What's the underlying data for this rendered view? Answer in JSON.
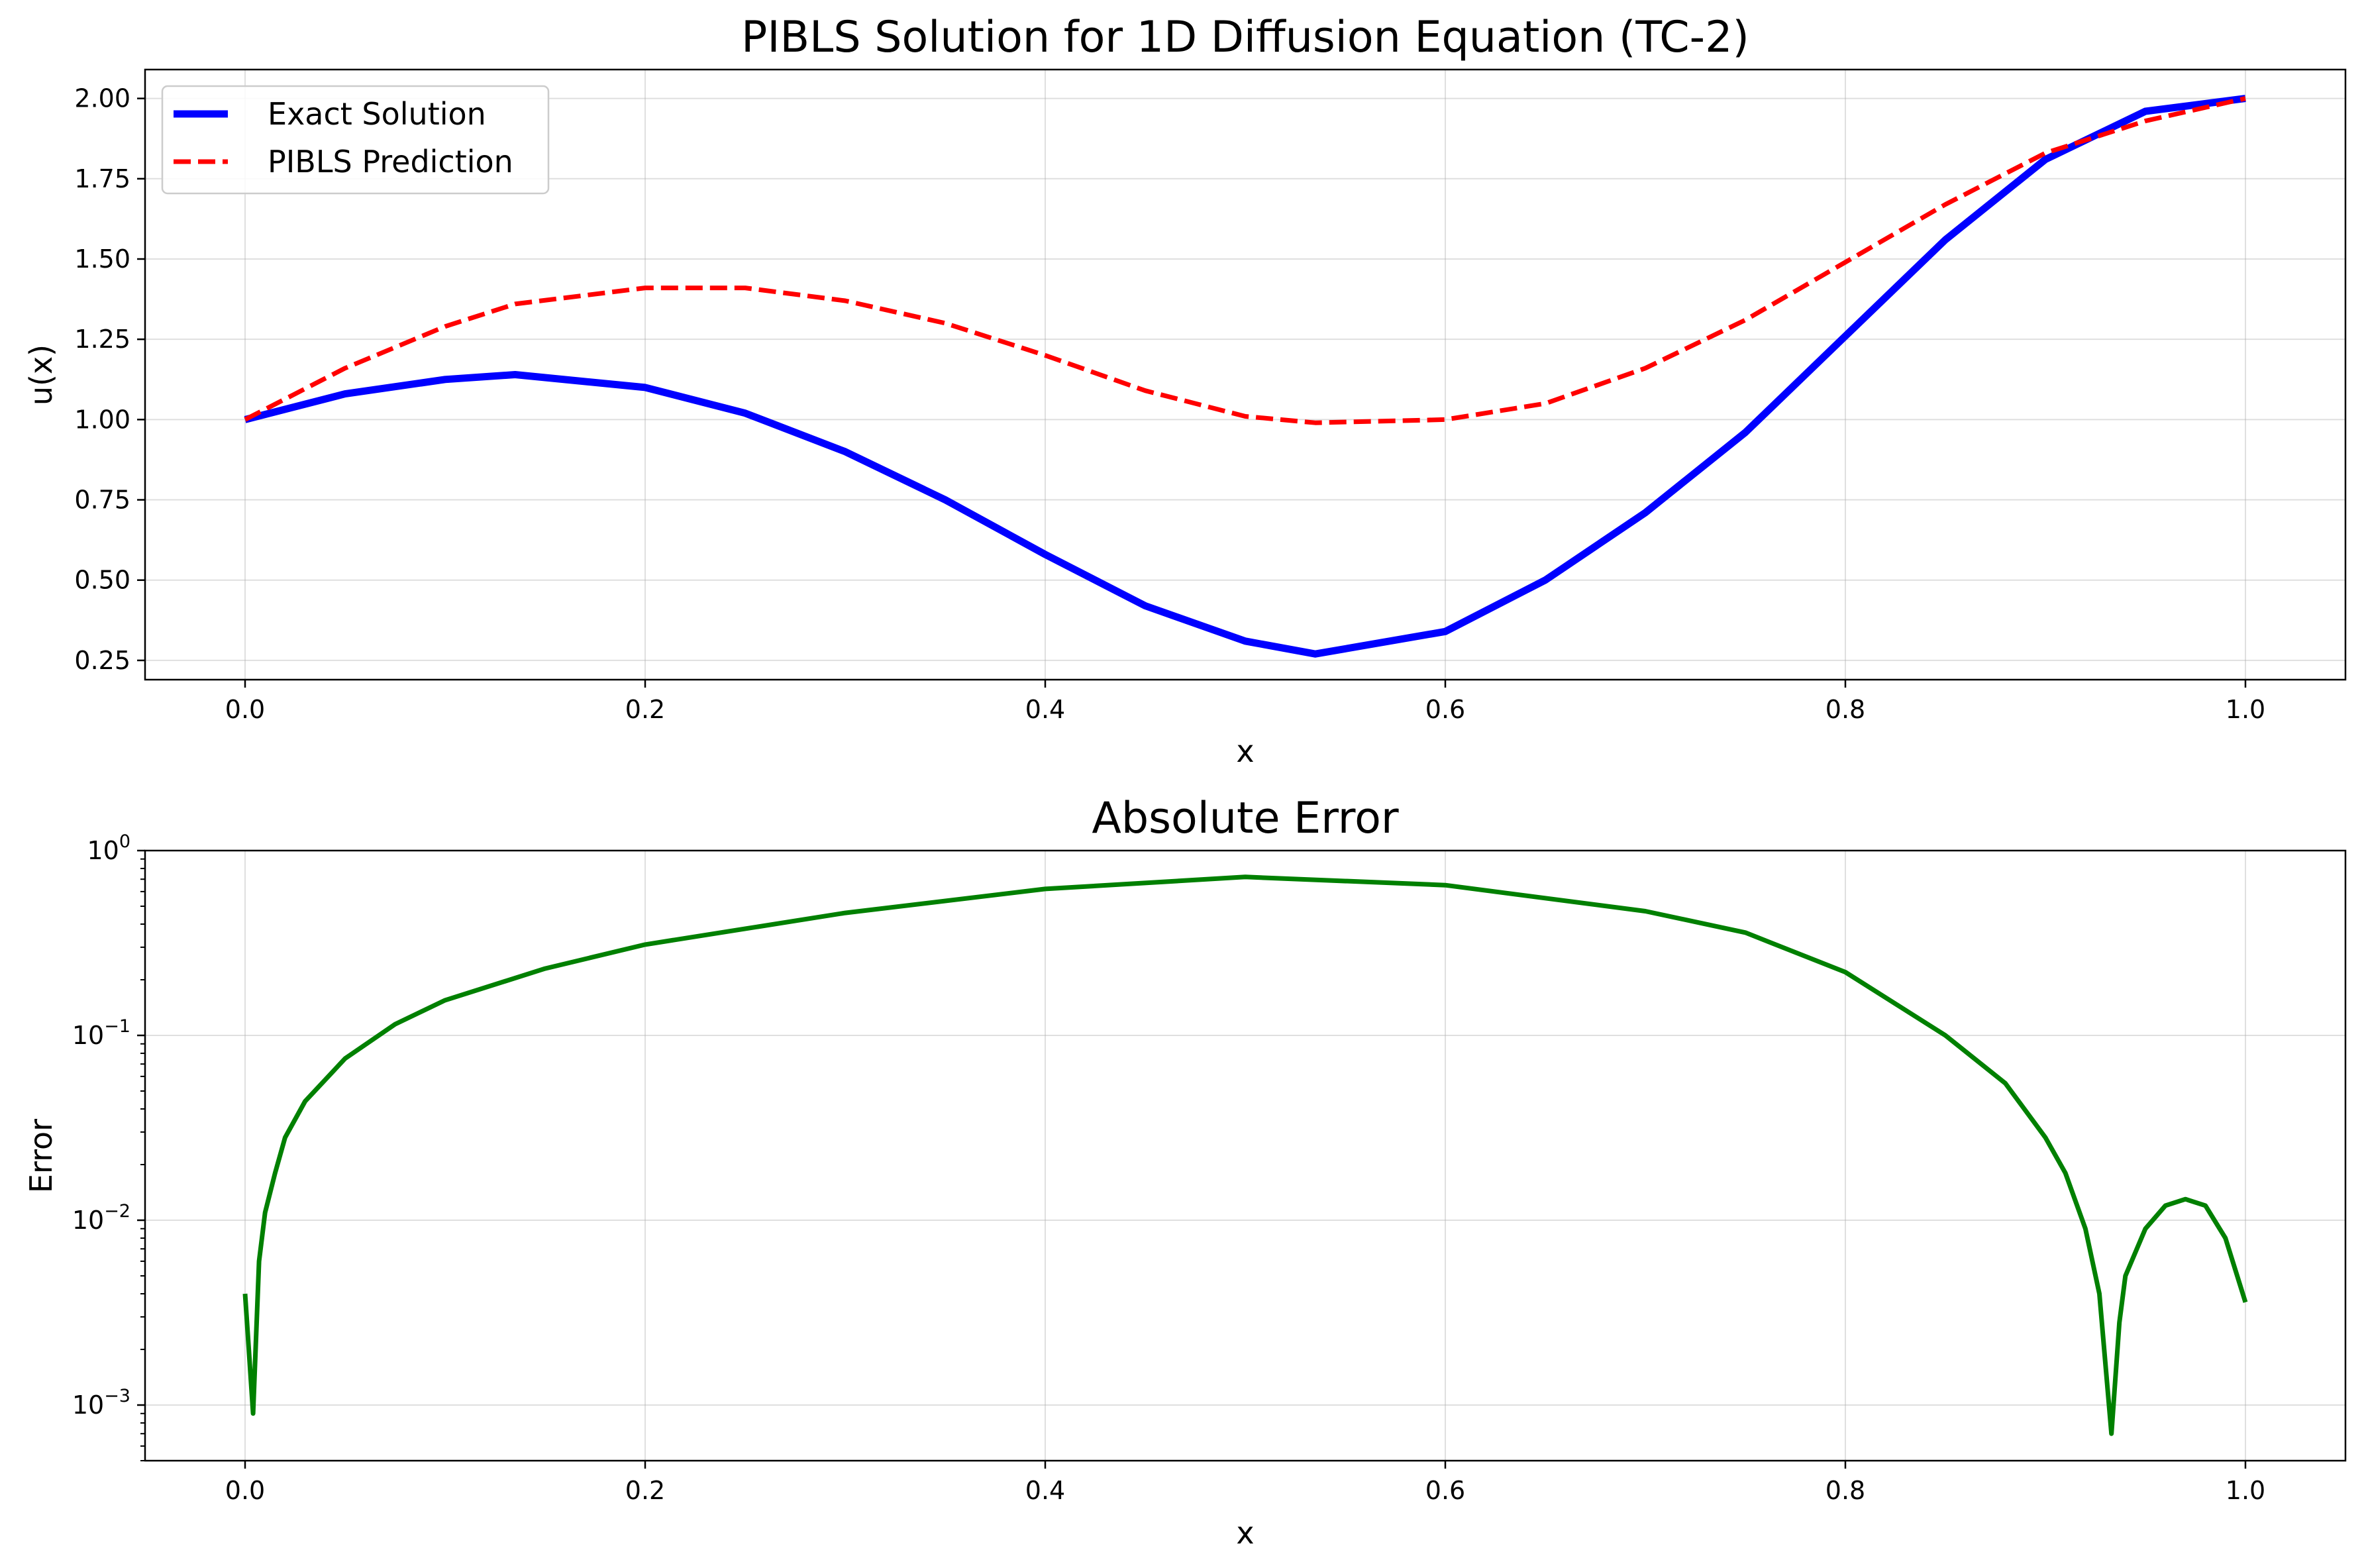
{
  "chart_data": [
    {
      "type": "line",
      "title": "PIBLS Solution for 1D Diffusion Equation (TC-2)",
      "xlabel": "x",
      "ylabel": "u(x)",
      "xlim": [
        -0.05,
        1.05
      ],
      "ylim": [
        0.19,
        2.09
      ],
      "x_ticks": [
        "0.0",
        "0.2",
        "0.4",
        "0.6",
        "0.8",
        "1.0"
      ],
      "y_ticks": [
        "0.25",
        "0.50",
        "0.75",
        "1.00",
        "1.25",
        "1.50",
        "1.75",
        "2.00"
      ],
      "grid": true,
      "legend": "upper-left",
      "x": [
        0.0,
        0.05,
        0.1,
        0.135,
        0.2,
        0.25,
        0.3,
        0.35,
        0.4,
        0.45,
        0.5,
        0.535,
        0.6,
        0.65,
        0.7,
        0.75,
        0.8,
        0.85,
        0.9,
        0.95,
        1.0
      ],
      "series": [
        {
          "name": "Exact Solution",
          "color": "#0000ff",
          "style": "solid",
          "values": [
            1.0,
            1.08,
            1.125,
            1.14,
            1.1,
            1.02,
            0.9,
            0.75,
            0.58,
            0.42,
            0.31,
            0.27,
            0.34,
            0.5,
            0.71,
            0.96,
            1.26,
            1.56,
            1.81,
            1.96,
            2.0
          ]
        },
        {
          "name": "PIBLS Prediction",
          "color": "#ff0000",
          "style": "dashed",
          "values": [
            1.0,
            1.16,
            1.29,
            1.36,
            1.41,
            1.41,
            1.37,
            1.3,
            1.2,
            1.09,
            1.01,
            0.99,
            1.0,
            1.05,
            1.16,
            1.31,
            1.49,
            1.67,
            1.83,
            1.93,
            2.0
          ]
        }
      ]
    },
    {
      "type": "line",
      "title": "Absolute Error",
      "xlabel": "x",
      "ylabel": "Error",
      "xlim": [
        -0.05,
        1.05
      ],
      "ylim": [
        0.0005,
        1.0
      ],
      "yscale": "log",
      "x_ticks": [
        "0.0",
        "0.2",
        "0.4",
        "0.6",
        "0.8",
        "1.0"
      ],
      "y_ticks": [
        {
          "base": "10",
          "exp": "−3"
        },
        {
          "base": "10",
          "exp": "−2"
        },
        {
          "base": "10",
          "exp": "−1"
        },
        {
          "base": "10",
          "exp": "0"
        }
      ],
      "grid": true,
      "x": [
        0.0,
        0.004,
        0.007,
        0.01,
        0.015,
        0.02,
        0.03,
        0.05,
        0.075,
        0.1,
        0.15,
        0.2,
        0.3,
        0.4,
        0.5,
        0.6,
        0.7,
        0.75,
        0.8,
        0.85,
        0.88,
        0.9,
        0.91,
        0.92,
        0.927,
        0.933,
        0.937,
        0.94,
        0.95,
        0.96,
        0.97,
        0.98,
        0.99,
        1.0
      ],
      "series": [
        {
          "color": "#008000",
          "values": [
            0.004,
            0.0009,
            0.006,
            0.011,
            0.018,
            0.028,
            0.044,
            0.075,
            0.115,
            0.155,
            0.23,
            0.31,
            0.46,
            0.62,
            0.72,
            0.65,
            0.47,
            0.36,
            0.22,
            0.1,
            0.055,
            0.028,
            0.018,
            0.009,
            0.004,
            0.0007,
            0.0028,
            0.005,
            0.009,
            0.012,
            0.013,
            0.012,
            0.008,
            0.0036
          ]
        }
      ]
    }
  ]
}
